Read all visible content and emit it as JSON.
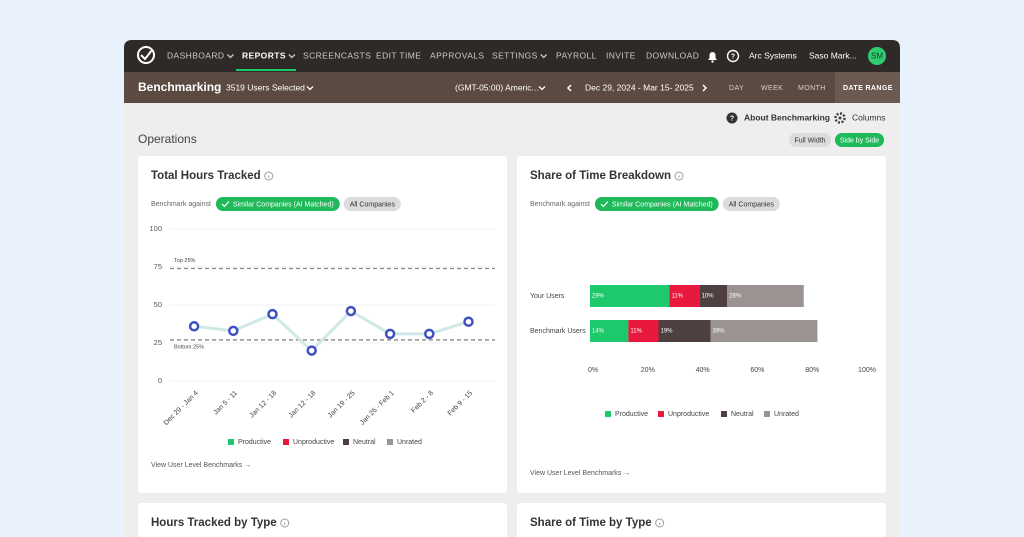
{
  "nav": {
    "items": [
      "DASHBOARD",
      "REPORTS",
      "SCREENCASTS",
      "EDIT TIME",
      "APPROVALS",
      "SETTINGS",
      "PAYROLL",
      "INVITE",
      "DOWNLOAD"
    ],
    "company": "Arc Systems",
    "user": "Saso Mark...",
    "avatar": "SM"
  },
  "subheader": {
    "title": "Benchmarking",
    "users": "3519 Users Selected",
    "timezone": "(GMT-05:00) Americ...",
    "date_range": "Dec 29, 2024 - Mar 15- 2025",
    "periods": [
      "DAY",
      "WEEK",
      "MONTH",
      "DATE RANGE"
    ]
  },
  "section": {
    "title": "Operations",
    "about": "About Benchmarking",
    "columns": "Columns",
    "layout_buttons": [
      "Full Width",
      "Side by Side"
    ]
  },
  "chart_data": [
    {
      "type": "line",
      "title": "Total Hours Tracked",
      "benchmark_label": "Benchmark against",
      "benchmark_options": [
        "Similar Companies (AI Matched)",
        "All Companies"
      ],
      "categories": [
        "Dec 29 - Jan 4",
        "Jan 5 - 11",
        "Jan 12 - 18",
        "Jan 12 - 18",
        "Jan 19 - 25",
        "Jan 26 - Feb 1",
        "Feb 2 - 8",
        "Feb 9 - 15"
      ],
      "values": [
        36,
        33,
        44,
        20,
        46,
        31,
        31,
        39
      ],
      "color": "#cfe9e6",
      "marker_color": "#3f51c0",
      "reference_lines": [
        {
          "label": "Top 25%",
          "value": 74
        },
        {
          "label": "Bottom 25%",
          "value": 27
        }
      ],
      "ylim": [
        0,
        100
      ],
      "yticks": [
        0,
        25,
        50,
        75,
        100
      ],
      "grid": true,
      "legend": [
        {
          "name": "Productive",
          "color": "#1ec96b"
        },
        {
          "name": "Unproductive",
          "color": "#e8193c"
        },
        {
          "name": "Neutral",
          "color": "#4e4040"
        },
        {
          "name": "Unrated",
          "color": "#9a9392"
        }
      ],
      "link": "View User Level Benchmarks →"
    },
    {
      "type": "stacked-bar",
      "orientation": "horizontal",
      "title": "Share of Time Breakdown",
      "benchmark_label": "Benchmark against",
      "benchmark_options": [
        "Similar Companies (AI Matched)",
        "All Companies"
      ],
      "categories": [
        "Your Users",
        "Benchmark Users"
      ],
      "series": [
        {
          "name": "Productive",
          "color": "#1ec96b",
          "values": [
            29,
            14
          ],
          "value_labels": [
            "29%",
            "14%"
          ]
        },
        {
          "name": "Unproductive",
          "color": "#e8193c",
          "values": [
            11,
            11
          ],
          "value_labels": [
            "11%",
            "11%"
          ]
        },
        {
          "name": "Neutral",
          "color": "#4e4040",
          "values": [
            10,
            19
          ],
          "value_labels": [
            "10%",
            "19%"
          ]
        },
        {
          "name": "Unrated",
          "color": "#9a9392",
          "values": [
            28,
            39
          ],
          "value_labels": [
            "28%",
            "39%"
          ]
        }
      ],
      "xlim": [
        0,
        100
      ],
      "xticks": [
        {
          "value": 0,
          "label": "0%"
        },
        {
          "value": 20,
          "label": "20%"
        },
        {
          "value": 40,
          "label": "40%"
        },
        {
          "value": 60,
          "label": "60%"
        },
        {
          "value": 80,
          "label": "80%"
        },
        {
          "value": 100,
          "label": "100%"
        }
      ],
      "link": "View User Level Benchmarks →"
    }
  ],
  "cards": [
    "Hours Tracked by Type",
    "Share of Time by Type"
  ]
}
